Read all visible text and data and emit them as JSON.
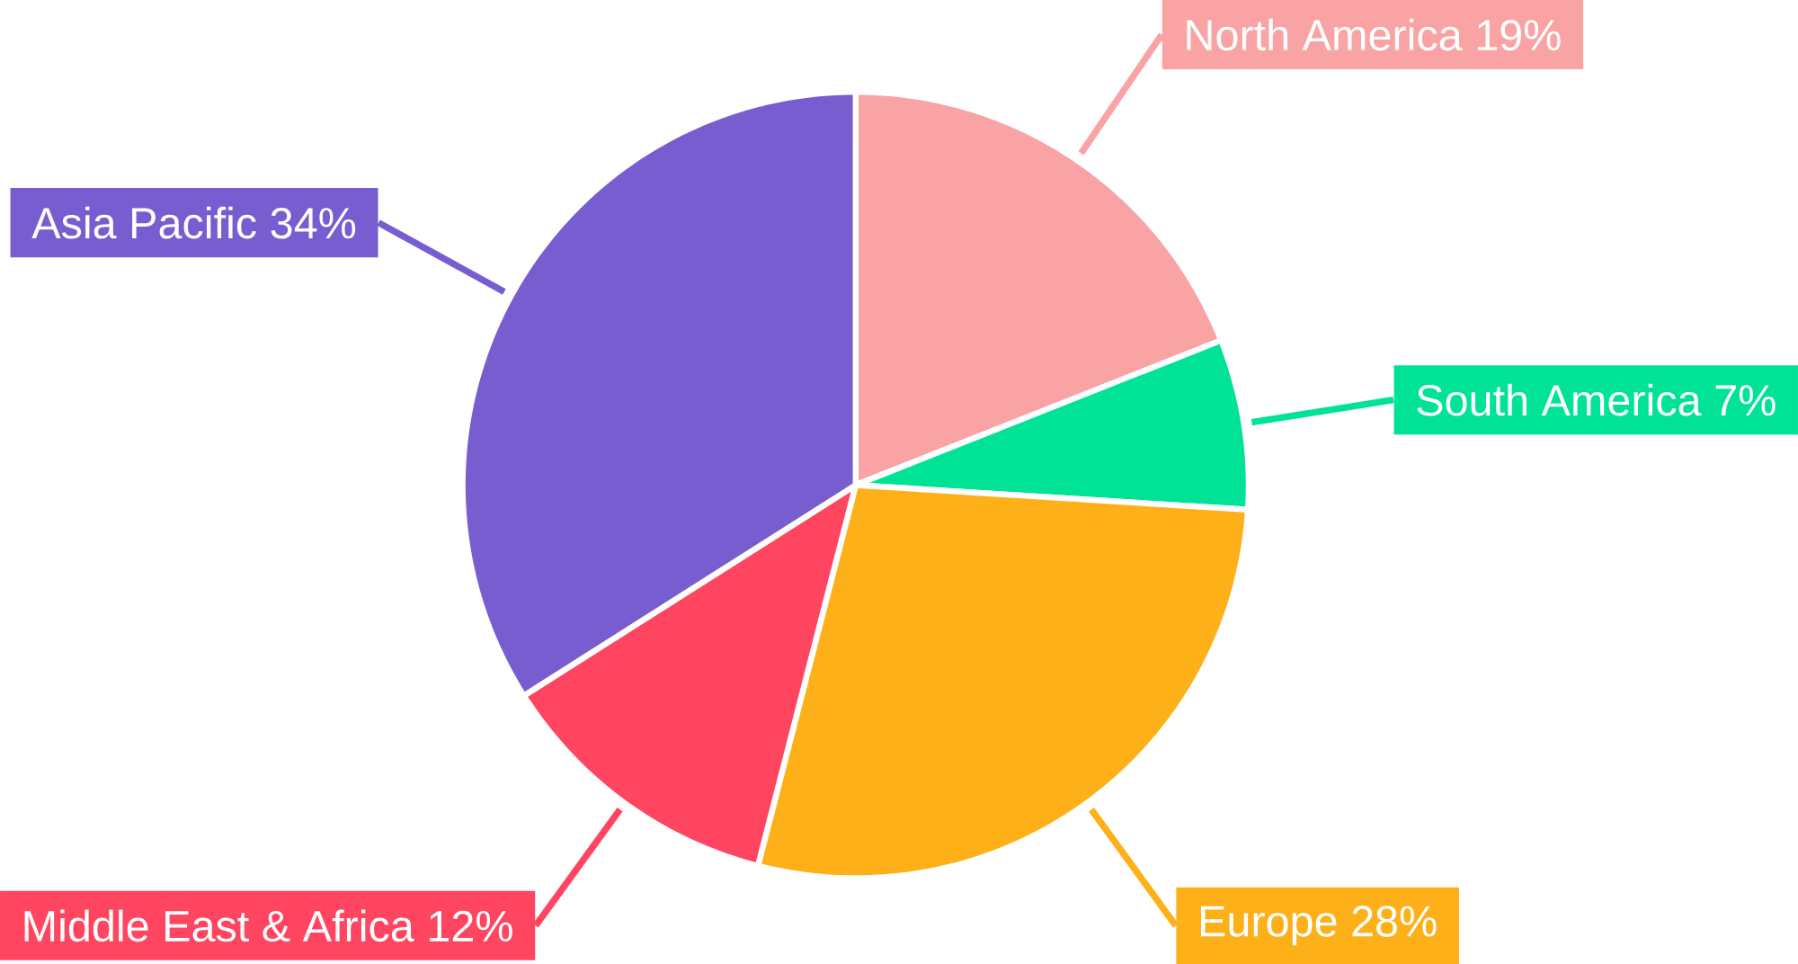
{
  "chart_data": {
    "type": "pie",
    "categories": [
      "North America",
      "South America",
      "Europe",
      "Middle East & Africa",
      "Asia Pacific"
    ],
    "values": [
      19,
      7,
      28,
      12,
      34
    ],
    "value_labels": [
      "19%",
      "7%",
      "28%",
      "12%",
      "34%"
    ],
    "colors": [
      "#f9a3a4",
      "#00e396",
      "#feb019",
      "#ff4560",
      "#775dd0"
    ]
  }
}
